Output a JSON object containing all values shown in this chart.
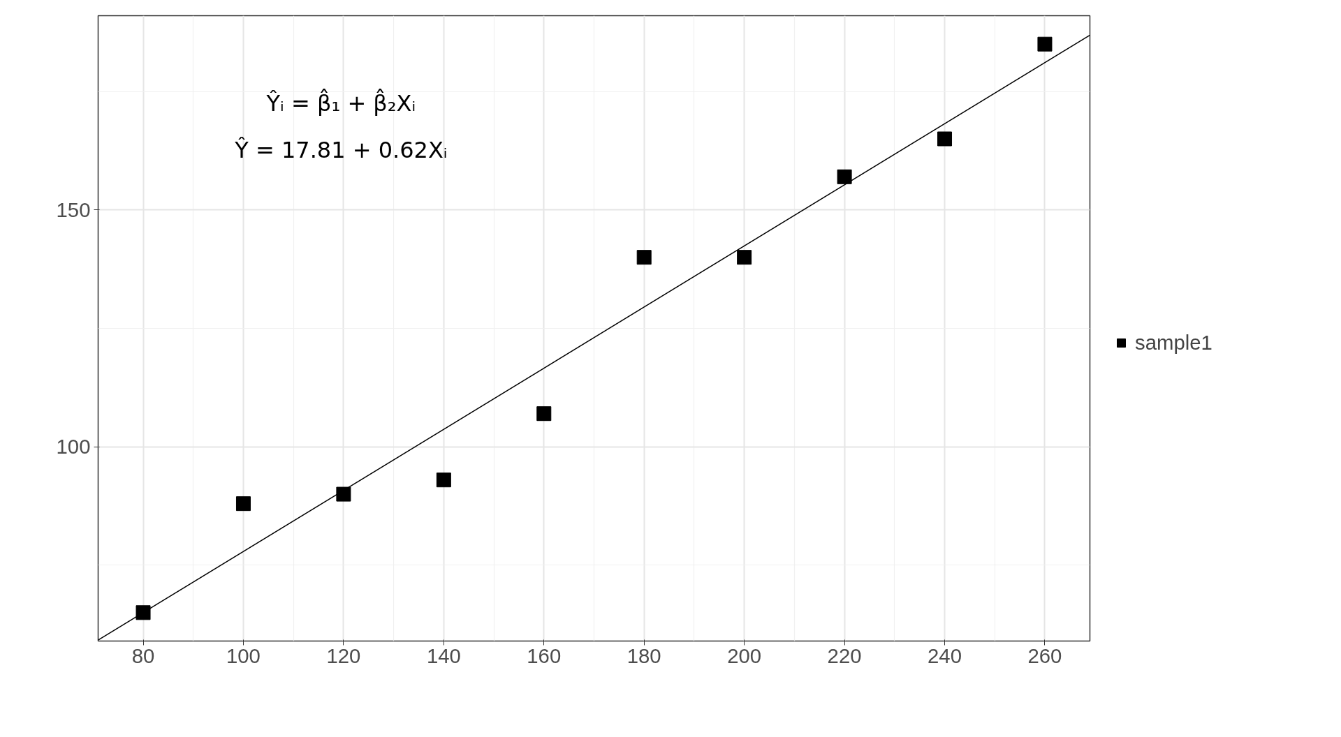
{
  "chart_data": {
    "type": "scatter",
    "x": [
      80,
      100,
      120,
      140,
      160,
      180,
      200,
      220,
      240,
      260
    ],
    "series": [
      {
        "name": "sample1",
        "color": "#000000",
        "marker": "square",
        "values": [
          65,
          88,
          90,
          93,
          107,
          140,
          140,
          157,
          165,
          185
        ]
      },
      {
        "color": "#000000",
        "type": "line",
        "x": [
          71,
          269
        ],
        "values": [
          59.2,
          186.9
        ]
      }
    ],
    "xlim": [
      71,
      269
    ],
    "ylim": [
      59,
      191
    ],
    "xticks": [
      80,
      100,
      120,
      140,
      160,
      180,
      200,
      220,
      240,
      260
    ],
    "yticks": [
      100,
      150
    ],
    "grid": true,
    "legend": "right",
    "annotations": [
      "Ŷᵢ = β̂₁ + β̂₂Xᵢ",
      "Ŷ = 17.81 + 0.62Xᵢ"
    ]
  }
}
